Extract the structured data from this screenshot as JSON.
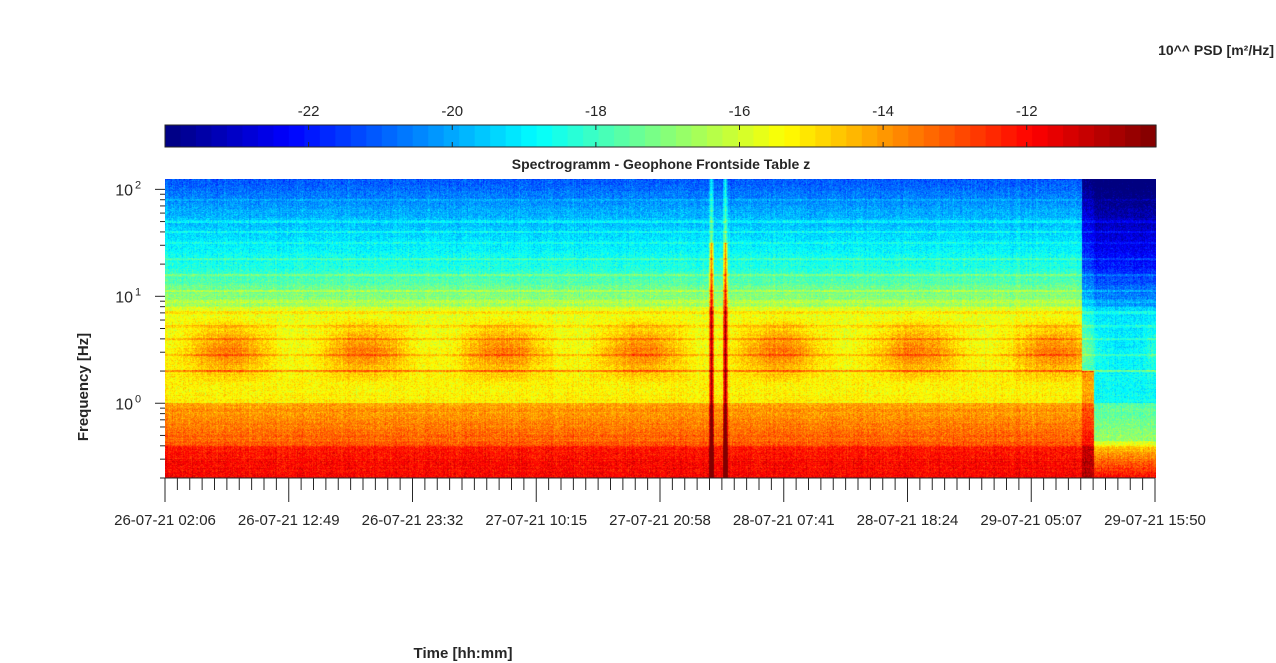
{
  "chart_data": {
    "type": "heatmap",
    "title": "Spectrogramm - Geophone Frontside Table z",
    "xlabel": "Time [hh:mm]",
    "ylabel": "Frequency [Hz]",
    "y_scale": "log",
    "ylim": [
      0.2,
      125
    ],
    "y_ticks": [
      1,
      10,
      100
    ],
    "y_tick_labels": [
      {
        "base": "10",
        "exp": "0"
      },
      {
        "base": "10",
        "exp": "1"
      },
      {
        "base": "10",
        "exp": "2"
      }
    ],
    "x_tick_labels": [
      "26-07-21 02:06",
      "26-07-21 12:49",
      "26-07-21 23:32",
      "27-07-21 10:15",
      "27-07-21 20:58",
      "28-07-21 07:41",
      "28-07-21 18:24",
      "29-07-21 05:07",
      "29-07-21 15:50"
    ],
    "colorbar": {
      "label": "10^^ PSD [m²/Hz]",
      "colormap": "jet",
      "range": [
        -24,
        -10.2
      ],
      "ticks": [
        -22,
        -20,
        -18,
        -16,
        -14,
        -12
      ],
      "tick_labels": [
        "-22",
        "-20",
        "-18",
        "-16",
        "-14",
        "-12"
      ]
    },
    "features": {
      "dominant_low_freq_level": -12,
      "high_freq_level": -21,
      "transient_events_fraction_of_time": [
        0.551,
        0.565
      ],
      "data_change_fraction_of_time": 0.925
    }
  }
}
